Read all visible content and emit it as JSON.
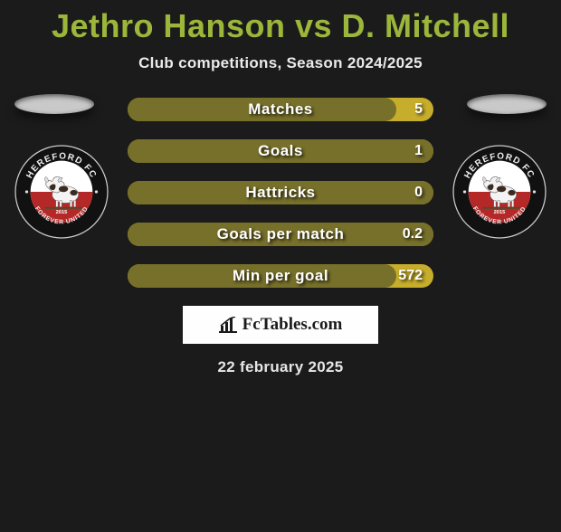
{
  "title": "Jethro Hanson vs D. Mitchell",
  "subtitle": "Club competitions, Season 2024/2025",
  "date": "22 february 2025",
  "watermark": "FcTables.com",
  "colors": {
    "background": "#1b1b1b",
    "title": "#9cb63b",
    "bar_bg": "#c6ad2b",
    "bar_fill": "#77702a",
    "text": "#ffffff"
  },
  "bars": [
    {
      "label": "Matches",
      "right_value": "5",
      "fill_pct": 88
    },
    {
      "label": "Goals",
      "right_value": "1",
      "fill_pct": 100
    },
    {
      "label": "Hattricks",
      "right_value": "0",
      "fill_pct": 100
    },
    {
      "label": "Goals per match",
      "right_value": "0.2",
      "fill_pct": 100
    },
    {
      "label": "Min per goal",
      "right_value": "572",
      "fill_pct": 88
    }
  ],
  "badge": {
    "top_text": "HEREFORD FC",
    "bottom_text": "FOREVER UNITED",
    "year": "2015",
    "ring_color": "#111111",
    "outline_color": "#cccccc",
    "inner_bg_top": "#ffffff",
    "inner_bg_bottom": "#b52828",
    "bull_body": "#f3f3f3",
    "bull_dark": "#3a2a1f"
  }
}
